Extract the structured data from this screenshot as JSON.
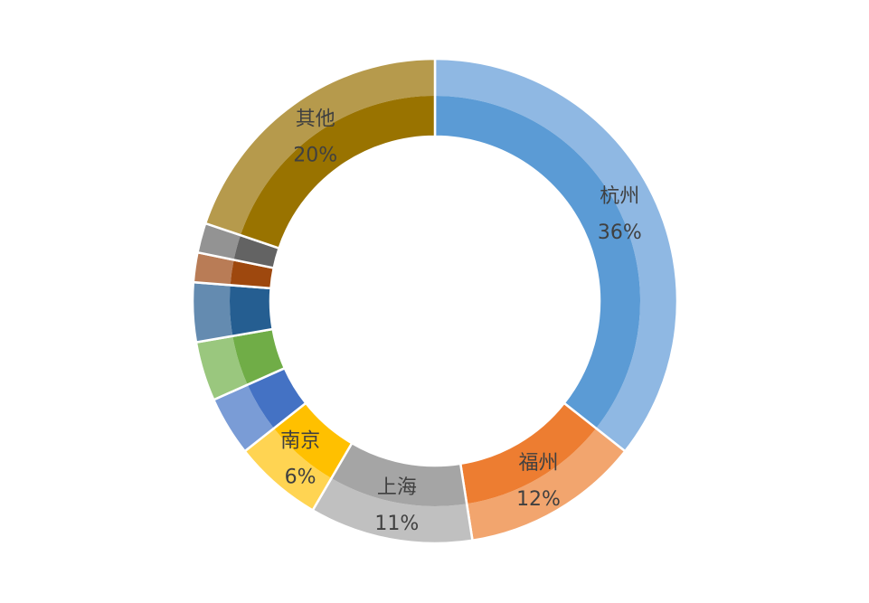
{
  "chart_data": {
    "type": "pie",
    "variant": "donut",
    "legend": "none",
    "slices": [
      {
        "label": "杭州",
        "value": 36,
        "value_label": "36%",
        "color": "#5B9BD5",
        "outer_color": "#8FB8E3"
      },
      {
        "label": "福州",
        "value": 12,
        "value_label": "12%",
        "color": "#ED7D31",
        "outer_color": "#F2A56E"
      },
      {
        "label": "上海",
        "value": 11,
        "value_label": "11%",
        "color": "#A5A5A5",
        "outer_color": "#C0C0C0"
      },
      {
        "label": "南京",
        "value": 6,
        "value_label": "6%",
        "color": "#FFC000",
        "outer_color": "#FFD452"
      },
      {
        "label": "",
        "value": 4,
        "value_label": "",
        "color": "#4472C4",
        "outer_color": "#7A9CD6"
      },
      {
        "label": "",
        "value": 4,
        "value_label": "",
        "color": "#70AD47",
        "outer_color": "#9AC77E"
      },
      {
        "label": "",
        "value": 4,
        "value_label": "",
        "color": "#255E91",
        "outer_color": "#648BB0"
      },
      {
        "label": "",
        "value": 2,
        "value_label": "",
        "color": "#9E480E",
        "outer_color": "#B97C56"
      },
      {
        "label": "",
        "value": 2,
        "value_label": "",
        "color": "#636363",
        "outer_color": "#939393"
      },
      {
        "label": "其他",
        "value": 20,
        "value_label": "20%",
        "color": "#997300",
        "outer_color": "#B69A4C"
      }
    ]
  }
}
